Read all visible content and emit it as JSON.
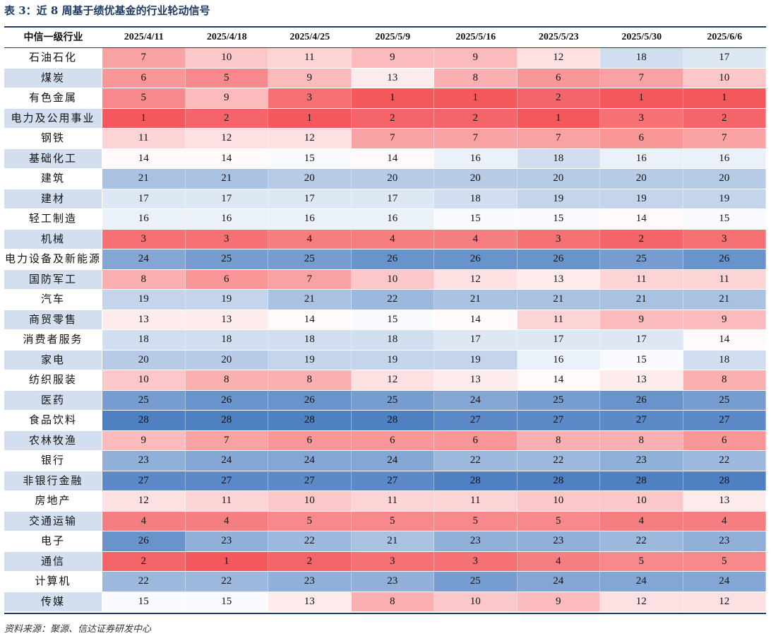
{
  "title": "表 3：近 8 周基于绩优基金的行业轮动信号",
  "source": "资料来源：聚源、信达证券研发中心",
  "colors": {
    "low_rank": "#f4585c",
    "mid_rank": "#ffffff",
    "high_rank": "#4f80c2",
    "rule": "#1f3b63",
    "name_shade": "#d3dfef"
  },
  "chart_data": {
    "type": "heatmap",
    "title": "表 3：近 8 周基于绩优基金的行业轮动信号",
    "row_header": "中信一级行业",
    "columns": [
      "2025/4/11",
      "2025/4/18",
      "2025/4/25",
      "2025/5/9",
      "2025/5/16",
      "2025/5/23",
      "2025/5/30",
      "2025/6/6"
    ],
    "value_range": [
      1,
      28
    ],
    "rows": [
      {
        "name": "石油石化",
        "values": [
          7,
          10,
          11,
          9,
          9,
          12,
          18,
          17
        ]
      },
      {
        "name": "煤炭",
        "values": [
          6,
          5,
          9,
          13,
          8,
          6,
          7,
          10
        ]
      },
      {
        "name": "有色金属",
        "values": [
          5,
          9,
          3,
          1,
          1,
          2,
          1,
          1
        ]
      },
      {
        "name": "电力及公用事业",
        "values": [
          1,
          2,
          1,
          2,
          2,
          1,
          3,
          2
        ]
      },
      {
        "name": "钢铁",
        "values": [
          11,
          12,
          12,
          7,
          7,
          7,
          6,
          7
        ]
      },
      {
        "name": "基础化工",
        "values": [
          14,
          14,
          15,
          14,
          16,
          18,
          16,
          16
        ]
      },
      {
        "name": "建筑",
        "values": [
          21,
          21,
          20,
          20,
          20,
          20,
          20,
          20
        ]
      },
      {
        "name": "建材",
        "values": [
          17,
          17,
          17,
          17,
          18,
          19,
          19,
          19
        ]
      },
      {
        "name": "轻工制造",
        "values": [
          16,
          16,
          16,
          16,
          15,
          15,
          14,
          15
        ]
      },
      {
        "name": "机械",
        "values": [
          3,
          3,
          4,
          4,
          4,
          3,
          2,
          3
        ]
      },
      {
        "name": "电力设备及新能源",
        "values": [
          24,
          25,
          25,
          26,
          26,
          26,
          25,
          26
        ]
      },
      {
        "name": "国防军工",
        "values": [
          8,
          6,
          7,
          10,
          12,
          13,
          11,
          11
        ]
      },
      {
        "name": "汽车",
        "values": [
          19,
          19,
          21,
          22,
          21,
          21,
          21,
          21
        ]
      },
      {
        "name": "商贸零售",
        "values": [
          13,
          13,
          14,
          15,
          14,
          11,
          9,
          9
        ]
      },
      {
        "name": "消费者服务",
        "values": [
          18,
          18,
          18,
          18,
          17,
          17,
          17,
          14
        ]
      },
      {
        "name": "家电",
        "values": [
          20,
          20,
          19,
          19,
          19,
          16,
          15,
          18
        ]
      },
      {
        "name": "纺织服装",
        "values": [
          10,
          8,
          8,
          12,
          13,
          14,
          13,
          8
        ]
      },
      {
        "name": "医药",
        "values": [
          25,
          26,
          26,
          25,
          24,
          25,
          26,
          25
        ]
      },
      {
        "name": "食品饮料",
        "values": [
          28,
          28,
          28,
          28,
          27,
          27,
          27,
          27
        ]
      },
      {
        "name": "农林牧渔",
        "values": [
          9,
          7,
          6,
          6,
          6,
          8,
          8,
          6
        ]
      },
      {
        "name": "银行",
        "values": [
          23,
          24,
          24,
          24,
          22,
          22,
          23,
          22
        ]
      },
      {
        "name": "非银行金融",
        "values": [
          27,
          27,
          27,
          27,
          28,
          28,
          28,
          28
        ]
      },
      {
        "name": "房地产",
        "values": [
          12,
          11,
          10,
          11,
          11,
          10,
          10,
          13
        ]
      },
      {
        "name": "交通运输",
        "values": [
          4,
          4,
          5,
          5,
          5,
          5,
          4,
          4
        ]
      },
      {
        "name": "电子",
        "values": [
          26,
          23,
          22,
          21,
          23,
          23,
          22,
          23
        ]
      },
      {
        "name": "通信",
        "values": [
          2,
          1,
          2,
          3,
          3,
          4,
          5,
          5
        ]
      },
      {
        "name": "计算机",
        "values": [
          22,
          22,
          23,
          23,
          25,
          24,
          24,
          24
        ]
      },
      {
        "name": "传媒",
        "values": [
          15,
          15,
          13,
          8,
          10,
          9,
          12,
          12
        ]
      }
    ]
  }
}
